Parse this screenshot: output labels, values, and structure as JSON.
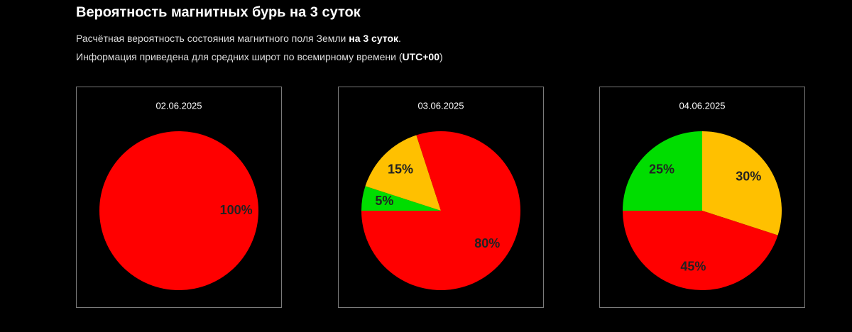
{
  "header": {
    "title": "Вероятность магнитных бурь на 3 суток",
    "lines": [
      [
        {
          "text": "Расчётная вероятность состояния магнитного поля Земли ",
          "bold": false
        },
        {
          "text": "на 3 суток",
          "bold": true
        },
        {
          "text": ".",
          "bold": false
        }
      ],
      [
        {
          "text": "Информация приведена для средних широт по всемирному времени (",
          "bold": false
        },
        {
          "text": "UTC+00",
          "bold": true
        },
        {
          "text": ")",
          "bold": false
        }
      ]
    ]
  },
  "chart_data": [
    {
      "type": "pie",
      "title": "02.06.2025",
      "values": [
        100
      ],
      "value_labels": [
        "100%"
      ],
      "colors": [
        "#ff0000"
      ]
    },
    {
      "type": "pie",
      "title": "03.06.2025",
      "values": [
        5,
        15,
        80
      ],
      "value_labels": [
        "5%",
        "15%",
        "80%"
      ],
      "colors": [
        "#00dd00",
        "#ffc000",
        "#ff0000"
      ]
    },
    {
      "type": "pie",
      "title": "04.06.2025",
      "values": [
        25,
        30,
        45
      ],
      "value_labels": [
        "25%",
        "30%",
        "45%"
      ],
      "colors": [
        "#00dd00",
        "#ffc000",
        "#ff0000"
      ]
    }
  ]
}
